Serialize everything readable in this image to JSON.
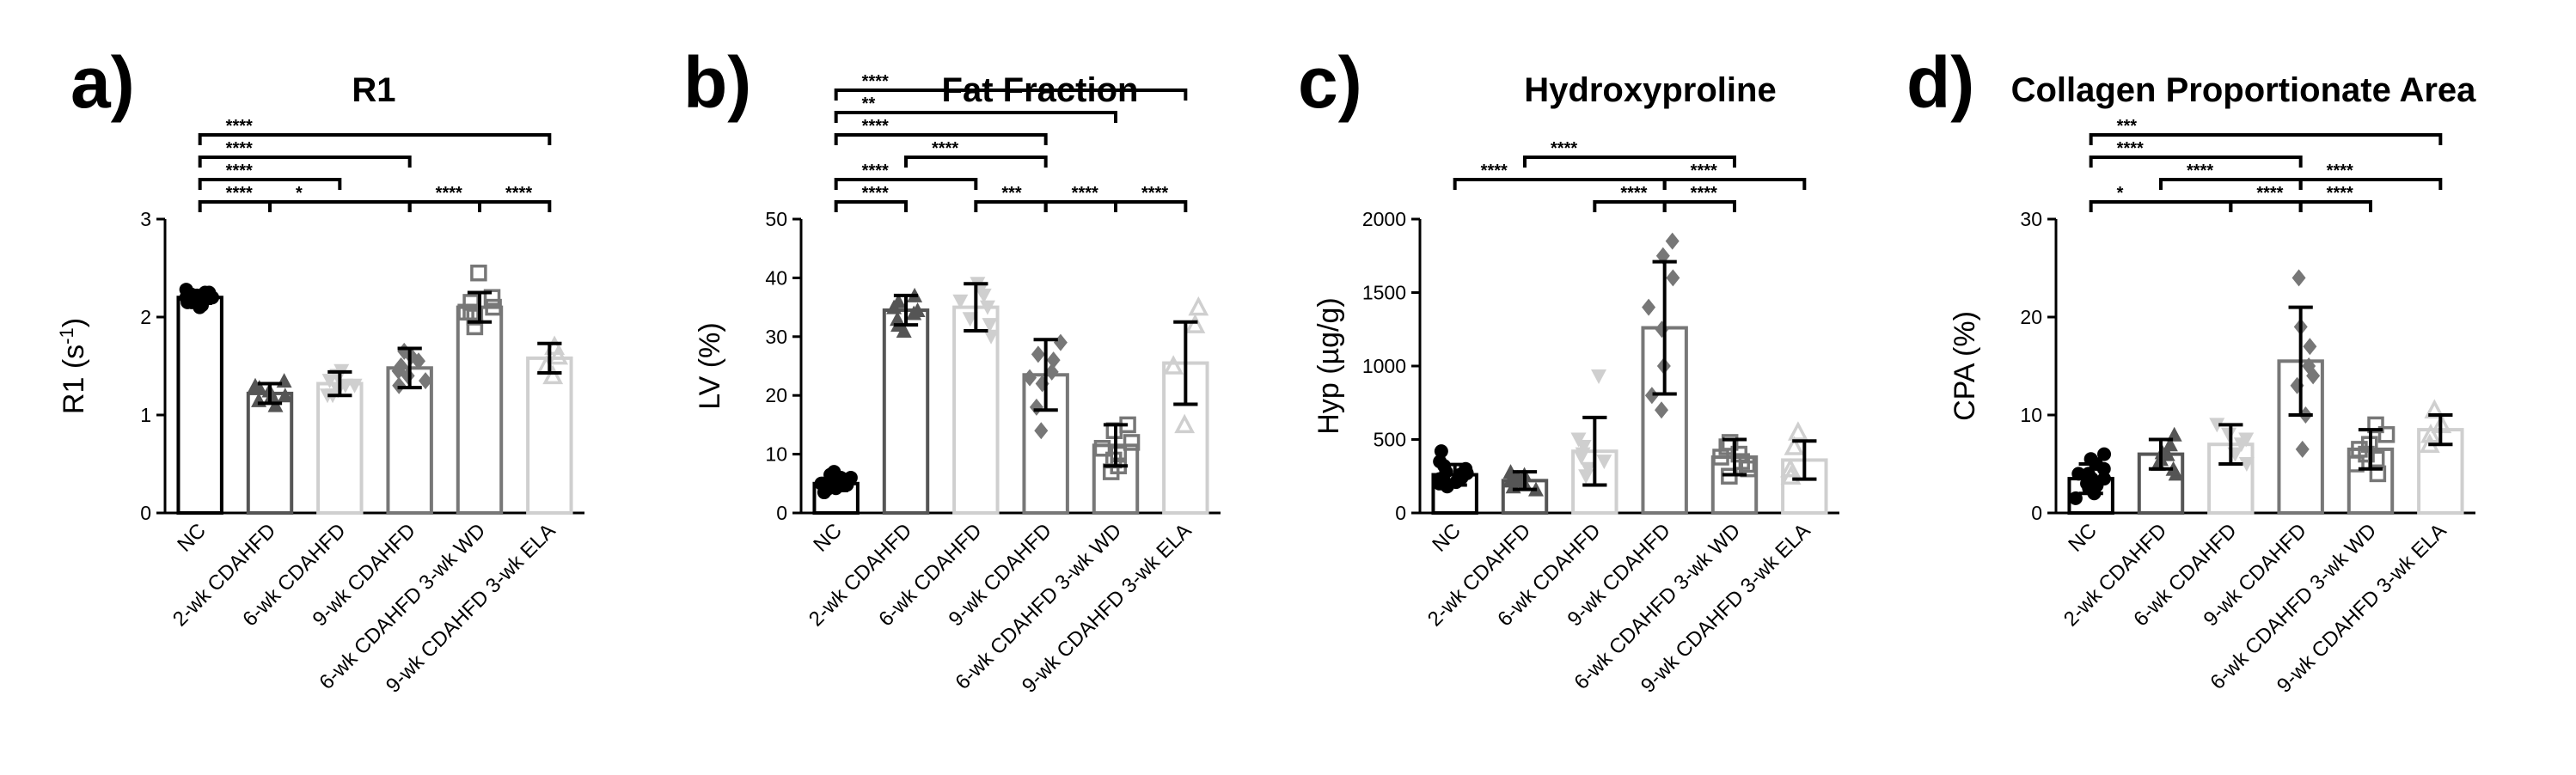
{
  "colors": {
    "black": "#000000",
    "dark_gray": "#555555",
    "mid_gray": "#777777",
    "light_gray": "#cfcfcf"
  },
  "chart_data": [
    {
      "type": "bar",
      "panel": "a)",
      "title": "R1",
      "ylabel": "R1 (s-1)",
      "ylabel_main": "R1 (s",
      "ylabel_sup": "-1",
      "ylabel_close": ")",
      "ylim": [
        0,
        3
      ],
      "yticks": [
        0,
        1,
        2,
        3
      ],
      "categories": [
        "NC",
        "2-wk CDAHFD",
        "6-wk CDAHFD",
        "9-wk CDAHFD",
        "6-wk CDAHFD 3-wk WD",
        "9-wk CDAHFD 3-wk ELA"
      ],
      "values": [
        2.2,
        1.22,
        1.32,
        1.48,
        2.1,
        1.58
      ],
      "errors": [
        0.06,
        0.1,
        0.12,
        0.2,
        0.15,
        0.15
      ],
      "points": [
        [
          2.1,
          2.12,
          2.15,
          2.15,
          2.18,
          2.18,
          2.2,
          2.2,
          2.2,
          2.22,
          2.22,
          2.25,
          2.25,
          2.28,
          2.14,
          2.23
        ],
        [
          1.1,
          1.15,
          1.2,
          1.25,
          1.28,
          1.3,
          1.35,
          1.2
        ],
        [
          1.2,
          1.25,
          1.3,
          1.35,
          1.4,
          1.45,
          1.3,
          1.2
        ],
        [
          1.3,
          1.35,
          1.4,
          1.5,
          1.6,
          1.65,
          1.45,
          1.55
        ],
        [
          1.9,
          2.0,
          2.05,
          2.1,
          2.15,
          2.2,
          2.45,
          2.05
        ],
        [
          1.4,
          1.5,
          1.6,
          1.7
        ]
      ],
      "significance": [
        {
          "pair": [
            0,
            5
          ],
          "label": "****"
        },
        {
          "pair": [
            0,
            3
          ],
          "label": "****"
        },
        {
          "pair": [
            0,
            2
          ],
          "label": "****"
        },
        {
          "pair": [
            0,
            1
          ],
          "label": "****"
        },
        {
          "pair": [
            1,
            3
          ],
          "label": "*"
        },
        {
          "pair": [
            3,
            4
          ],
          "label": "****"
        },
        {
          "pair": [
            4,
            5
          ],
          "label": "****"
        }
      ]
    },
    {
      "type": "bar",
      "panel": "b)",
      "title": "Fat Fraction",
      "ylabel": "LV (%)",
      "ylim": [
        0,
        50
      ],
      "yticks": [
        0,
        10,
        20,
        30,
        40,
        50
      ],
      "categories": [
        "NC",
        "2-wk CDAHFD",
        "6-wk CDAHFD",
        "9-wk CDAHFD",
        "6-wk CDAHFD 3-wk WD",
        "9-wk CDAHFD 3-wk ELA"
      ],
      "values": [
        5,
        34.5,
        35,
        23.5,
        11.5,
        25.5
      ],
      "errors": [
        1.2,
        2.5,
        4.0,
        6.0,
        3.5,
        7.0
      ],
      "points": [
        [
          3.5,
          4,
          4.5,
          5,
          5,
          5.5,
          5.5,
          6,
          6,
          6.5,
          7,
          4.2,
          5.2,
          4.8,
          6.2
        ],
        [
          31,
          32,
          33,
          34,
          35,
          36,
          37,
          34.5
        ],
        [
          30,
          32,
          35,
          37,
          38,
          39,
          36,
          33
        ],
        [
          14,
          18,
          22,
          24,
          26,
          27,
          29,
          23
        ],
        [
          7,
          8,
          9,
          11,
          12,
          14,
          15,
          10
        ],
        [
          15,
          25,
          32,
          35
        ]
      ],
      "significance": [
        {
          "pair": [
            0,
            5
          ],
          "label": "****"
        },
        {
          "pair": [
            0,
            4
          ],
          "label": "**"
        },
        {
          "pair": [
            0,
            3
          ],
          "label": "****"
        },
        {
          "pair": [
            0,
            2
          ],
          "label": "****"
        },
        {
          "pair": [
            0,
            1
          ],
          "label": "****"
        },
        {
          "pair": [
            1,
            3
          ],
          "label": "****"
        },
        {
          "pair": [
            2,
            3
          ],
          "label": "***"
        },
        {
          "pair": [
            3,
            4
          ],
          "label": "****"
        },
        {
          "pair": [
            4,
            5
          ],
          "label": "****"
        }
      ]
    },
    {
      "type": "bar",
      "panel": "c)",
      "title": "Hydroxyproline",
      "ylabel": "Hyp (µg/g)",
      "ylim": [
        0,
        2000
      ],
      "yticks": [
        0,
        500,
        1000,
        1500,
        2000
      ],
      "categories": [
        "NC",
        "2-wk CDAHFD",
        "6-wk CDAHFD",
        "9-wk CDAHFD",
        "6-wk CDAHFD 3-wk WD",
        "9-wk CDAHFD 3-wk ELA"
      ],
      "values": [
        260,
        220,
        420,
        1260,
        380,
        360
      ],
      "errors": [
        70,
        60,
        230,
        450,
        120,
        130
      ],
      "points": [
        [
          180,
          200,
          220,
          240,
          250,
          260,
          270,
          280,
          300,
          320,
          350,
          420,
          230,
          210,
          290
        ],
        [
          160,
          180,
          200,
          220,
          240,
          260,
          280,
          220
        ],
        [
          250,
          300,
          350,
          400,
          450,
          500,
          930,
          380
        ],
        [
          700,
          800,
          1000,
          1250,
          1400,
          1600,
          1750,
          1850
        ],
        [
          250,
          300,
          350,
          400,
          450,
          480,
          380,
          330
        ],
        [
          250,
          300,
          450,
          550
        ]
      ],
      "significance": [
        {
          "pair": [
            0,
            3
          ],
          "label": "****"
        },
        {
          "pair": [
            1,
            4
          ],
          "label": "****"
        },
        {
          "pair": [
            3,
            5
          ],
          "label": "****"
        },
        {
          "pair": [
            2,
            3
          ],
          "label": "****"
        },
        {
          "pair": [
            3,
            4
          ],
          "label": "****"
        }
      ]
    },
    {
      "type": "bar",
      "panel": "d)",
      "title": "Collagen Proportionate Area",
      "ylabel": "CPA (%)",
      "ylim": [
        0,
        30
      ],
      "yticks": [
        0,
        10,
        20,
        30
      ],
      "categories": [
        "NC",
        "2-wk CDAHFD",
        "6-wk CDAHFD",
        "9-wk CDAHFD",
        "6-wk CDAHFD 3-wk WD",
        "9-wk CDAHFD 3-wk ELA"
      ],
      "values": [
        3.5,
        6,
        7,
        15.5,
        6.5,
        8.5
      ],
      "errors": [
        1.5,
        1.5,
        2.0,
        5.5,
        2.0,
        1.5
      ],
      "points": [
        [
          1.5,
          2,
          2.5,
          3,
          3,
          3.5,
          3.5,
          4,
          4,
          4.5,
          5,
          5.5,
          6,
          2.8,
          3.2
        ],
        [
          4,
          4.5,
          5,
          5.5,
          6,
          7,
          8,
          6.2
        ],
        [
          5,
          6,
          7,
          8,
          9,
          7.5
        ],
        [
          6.5,
          10,
          13,
          15,
          17,
          19,
          24,
          14
        ],
        [
          4,
          5,
          6,
          7,
          8,
          9,
          6.5,
          5.5
        ],
        [
          7,
          8,
          9,
          10.5
        ]
      ],
      "significance": [
        {
          "pair": [
            0,
            5
          ],
          "label": "***"
        },
        {
          "pair": [
            0,
            3
          ],
          "label": "****"
        },
        {
          "pair": [
            0,
            2
          ],
          "label": "*"
        },
        {
          "pair": [
            1,
            3
          ],
          "label": "****"
        },
        {
          "pair": [
            3,
            5
          ],
          "label": "****"
        },
        {
          "pair": [
            2,
            3
          ],
          "label": "****"
        },
        {
          "pair": [
            3,
            4
          ],
          "label": "****"
        }
      ]
    }
  ]
}
